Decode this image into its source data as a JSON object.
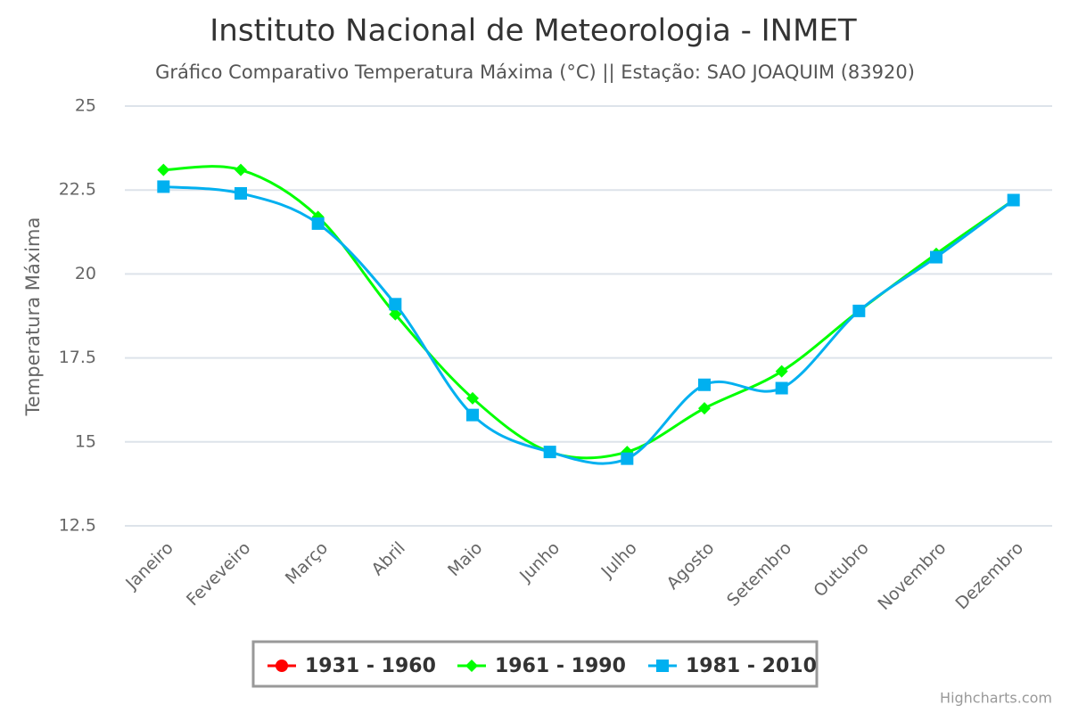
{
  "chart_data": {
    "type": "line",
    "title": "Instituto Nacional de Meteorologia - INMET",
    "subtitle": "Gráfico Comparativo Temperatura Máxima (°C) || Estação: SAO JOAQUIM (83920)",
    "y_label": "Temperatura Máxima",
    "categories": [
      "Janeiro",
      "Feveveiro",
      "Março",
      "Abril",
      "Maio",
      "Junho",
      "Julho",
      "Agosto",
      "Setembro",
      "Outubro",
      "Novembro",
      "Dezembro"
    ],
    "series": [
      {
        "name": "1931 - 1960",
        "color": "#ff0000",
        "marker": "circle",
        "values": [
          null,
          null,
          null,
          null,
          null,
          null,
          null,
          null,
          null,
          null,
          null,
          null
        ]
      },
      {
        "name": "1961 - 1990",
        "color": "#00ff00",
        "marker": "diamond",
        "values": [
          23.1,
          23.1,
          21.7,
          18.8,
          16.3,
          14.7,
          14.7,
          16.0,
          17.1,
          18.9,
          20.6,
          22.2
        ]
      },
      {
        "name": "1981 - 2010",
        "color": "#00b0f0",
        "marker": "square",
        "values": [
          22.6,
          22.4,
          21.5,
          19.1,
          15.8,
          14.7,
          14.5,
          16.7,
          16.6,
          18.9,
          20.5,
          22.2
        ]
      }
    ],
    "ylim": [
      12.5,
      25
    ],
    "yticks": [
      12.5,
      15,
      17.5,
      20,
      22.5,
      25
    ],
    "grid": true,
    "legend": "bottom",
    "credits": "Highcharts.com"
  }
}
